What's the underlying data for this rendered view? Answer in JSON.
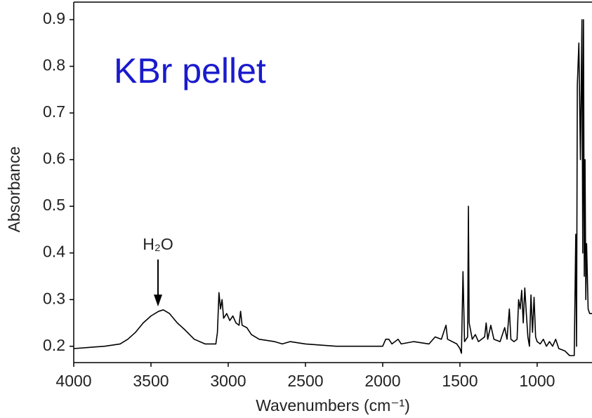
{
  "chart_data": {
    "type": "line",
    "annotations": [
      "KBr pellet",
      "H₂O"
    ],
    "xlabel": "Wavenumbers (cm⁻¹)",
    "ylabel": "Absorbance",
    "color": "#000000",
    "x": [
      4000,
      3800,
      3700,
      3650,
      3600,
      3550,
      3500,
      3450,
      3420,
      3380,
      3330,
      3280,
      3220,
      3150,
      3080,
      3070,
      3060,
      3050,
      3040,
      3030,
      3010,
      2990,
      2970,
      2950,
      2930,
      2920,
      2910,
      2880,
      2850,
      2800,
      2700,
      2650,
      2600,
      2500,
      2300,
      2100,
      2000,
      1980,
      1960,
      1940,
      1900,
      1880,
      1800,
      1700,
      1660,
      1620,
      1600,
      1590,
      1580,
      1520,
      1500,
      1490,
      1480,
      1470,
      1450,
      1445,
      1440,
      1420,
      1400,
      1380,
      1340,
      1330,
      1320,
      1300,
      1280,
      1240,
      1220,
      1210,
      1195,
      1180,
      1170,
      1150,
      1130,
      1120,
      1110,
      1100,
      1090,
      1080,
      1070,
      1060,
      1050,
      1040,
      1030,
      1020,
      1010,
      1000,
      980,
      960,
      940,
      920,
      900,
      880,
      860,
      820,
      790,
      760,
      750,
      745,
      740,
      730,
      720,
      710,
      705,
      700,
      695,
      690,
      685,
      680,
      670,
      660,
      645
    ],
    "values": [
      0.195,
      0.2,
      0.205,
      0.215,
      0.23,
      0.25,
      0.265,
      0.275,
      0.278,
      0.27,
      0.25,
      0.235,
      0.215,
      0.205,
      0.205,
      0.23,
      0.315,
      0.28,
      0.3,
      0.26,
      0.27,
      0.255,
      0.265,
      0.25,
      0.245,
      0.275,
      0.245,
      0.24,
      0.225,
      0.215,
      0.21,
      0.205,
      0.21,
      0.205,
      0.2,
      0.2,
      0.2,
      0.215,
      0.215,
      0.205,
      0.215,
      0.205,
      0.21,
      0.205,
      0.22,
      0.215,
      0.235,
      0.245,
      0.215,
      0.205,
      0.195,
      0.185,
      0.36,
      0.21,
      0.22,
      0.5,
      0.25,
      0.215,
      0.225,
      0.21,
      0.22,
      0.25,
      0.215,
      0.245,
      0.215,
      0.21,
      0.23,
      0.24,
      0.215,
      0.28,
      0.215,
      0.21,
      0.215,
      0.3,
      0.28,
      0.32,
      0.25,
      0.325,
      0.27,
      0.22,
      0.2,
      0.31,
      0.23,
      0.305,
      0.22,
      0.21,
      0.205,
      0.215,
      0.2,
      0.21,
      0.2,
      0.215,
      0.195,
      0.19,
      0.18,
      0.18,
      0.44,
      0.2,
      0.76,
      0.85,
      0.6,
      0.9,
      0.4,
      0.9,
      0.35,
      0.6,
      0.3,
      0.42,
      0.28,
      0.27,
      0.27
    ],
    "xlim": [
      4000,
      645
    ],
    "ylim": [
      0.165,
      0.9
    ],
    "xticks": [
      4000,
      3500,
      3000,
      2500,
      2000,
      1500,
      1000
    ],
    "yticks": [
      0.2,
      0.3,
      0.4,
      0.5,
      0.6,
      0.7,
      0.8,
      0.9
    ]
  }
}
